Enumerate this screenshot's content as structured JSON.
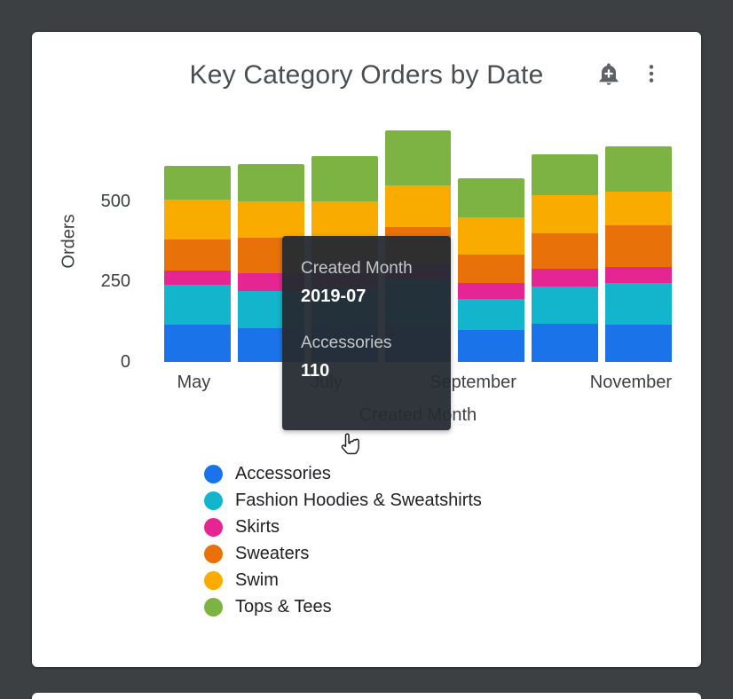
{
  "card": {
    "title": "Key Category Orders by Date"
  },
  "header_icons": {
    "alert_icon": "bell-plus",
    "menu_icon": "kebab-menu"
  },
  "chart_data": {
    "type": "bar",
    "stacked": true,
    "title": "Key Category Orders by Date",
    "xlabel": "Created Month",
    "ylabel": "Orders",
    "ylim": [
      0,
      750
    ],
    "yticks": [
      0,
      250,
      500
    ],
    "grid": false,
    "legend_position": "bottom-left",
    "categories": [
      "2019-05",
      "2019-06",
      "2019-07",
      "2019-08",
      "2019-09",
      "2019-10",
      "2019-11"
    ],
    "x_tick_labels": [
      "May",
      "",
      "July",
      "",
      "September",
      "",
      "November"
    ],
    "series": [
      {
        "name": "Accessories",
        "color": "#1A73E8",
        "values": [
          115,
          105,
          110,
          125,
          100,
          120,
          115
        ]
      },
      {
        "name": "Fashion Hoodies & Sweatshirts",
        "color": "#12B5CB",
        "values": [
          125,
          115,
          120,
          130,
          95,
          115,
          130
        ]
      },
      {
        "name": "Skirts",
        "color": "#E52592",
        "values": [
          45,
          55,
          45,
          50,
          50,
          55,
          50
        ]
      },
      {
        "name": "Sweaters",
        "color": "#E8710A",
        "values": [
          95,
          110,
          105,
          115,
          90,
          110,
          130
        ]
      },
      {
        "name": "Swim",
        "color": "#F9AB00",
        "values": [
          125,
          115,
          120,
          130,
          115,
          120,
          105
        ]
      },
      {
        "name": "Tops & Tees",
        "color": "#7CB342",
        "values": [
          105,
          115,
          140,
          170,
          120,
          125,
          140
        ]
      }
    ]
  },
  "tooltip": {
    "field_label": "Created Month",
    "field_value": "2019-07",
    "series_label": "Accessories",
    "series_value": "110"
  },
  "cursor": {
    "icon": "hand-pointer"
  }
}
